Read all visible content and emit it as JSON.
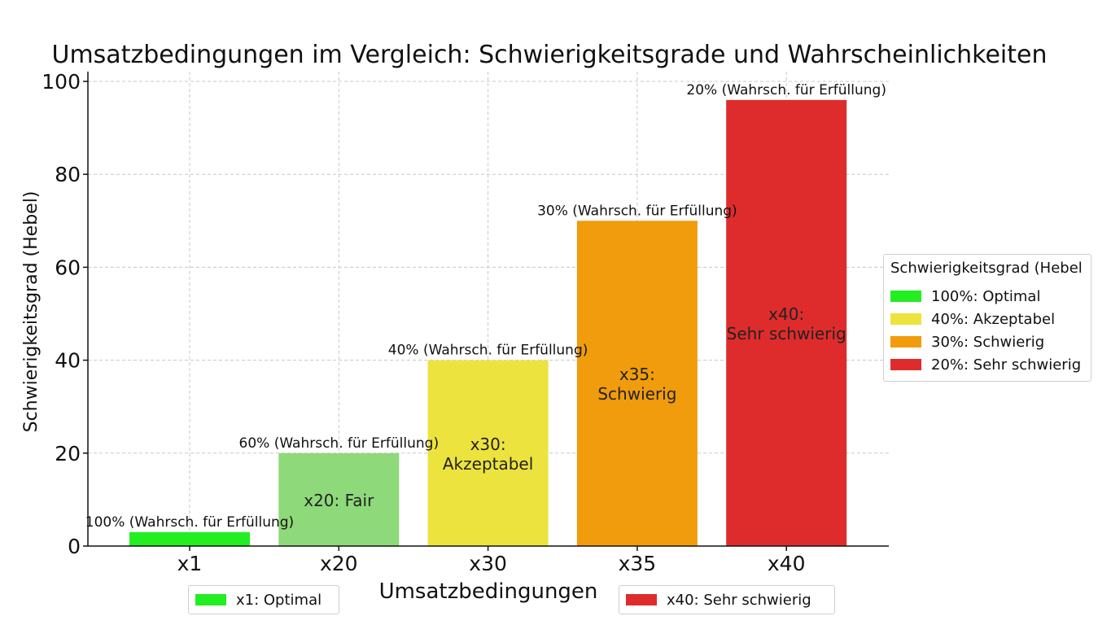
{
  "chart_data": {
    "type": "bar",
    "title": "Umsatzbedingungen im Vergleich: Schwierigkeitsgrade und Wahrscheinlichkeiten",
    "xlabel": "Umsatzbedingungen",
    "ylabel": "Schwierigkeitsgrad (Hebel)",
    "ylim": [
      0,
      100
    ],
    "yticks": [
      0,
      20,
      40,
      60,
      80,
      100
    ],
    "grid": true,
    "categories": [
      "x1",
      "x20",
      "x30",
      "x35",
      "x40"
    ],
    "values": [
      3,
      20,
      40,
      70,
      96
    ],
    "colors": [
      "#22ee22",
      "#8ed97a",
      "#ede33f",
      "#f09c0c",
      "#de2c2c"
    ],
    "bar_labels": [
      "",
      "x20: Fair",
      "x30:\nAkzeptabel",
      "x35:\nSchwierig",
      "x40:\nSehr schwierig"
    ],
    "top_labels": [
      "100% (Wahrsch. für Erfüllung)",
      "60% (Wahrsch. für Erfüllung)",
      "40% (Wahrsch. für Erfüllung)",
      "30% (Wahrsch. für Erfüllung)",
      "20% (Wahrsch. für Erfüllung)"
    ],
    "legend": {
      "title": "Schwierigkeitsgrad (Hebel",
      "placement": "right",
      "entries": [
        {
          "label": "100%: Optimal",
          "color": "#22ee22"
        },
        {
          "label": "40%: Akzeptabel",
          "color": "#ede33f"
        },
        {
          "label": "30%: Schwierig",
          "color": "#f09c0c"
        },
        {
          "label": "20%: Sehr schwierig",
          "color": "#de2c2c"
        }
      ]
    },
    "extra_legends": [
      {
        "label": "x1: Optimal",
        "color": "#22ee22",
        "placement": "bottom-left"
      },
      {
        "label": "x40: Sehr schwierig",
        "color": "#de2c2c",
        "placement": "bottom-right"
      }
    ]
  }
}
